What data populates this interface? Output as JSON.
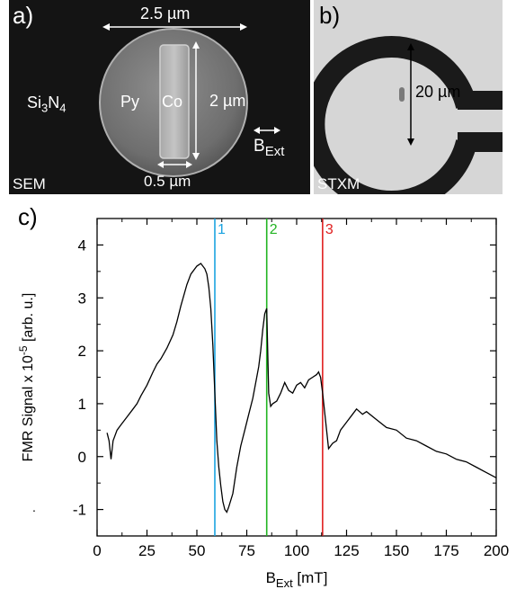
{
  "panel_a": {
    "label": "a)",
    "width_label": "2.5 µm",
    "height_label": "2 µm",
    "gap_label": "0.5 µm",
    "substrate_label": "Si3N4",
    "substrate_parts": [
      "Si",
      "3",
      "N",
      "4"
    ],
    "disk_label": "Py",
    "bar_label": "Co",
    "field_label": "BExt",
    "field_parts": [
      "B",
      "Ext"
    ],
    "corner_label": "SEM"
  },
  "panel_b": {
    "label": "b)",
    "diameter_label": "20 µm",
    "corner_label": "STXM"
  },
  "panel_c": {
    "label": "c)",
    "tick_dot": "."
  },
  "chart_data": {
    "type": "line",
    "xlabel": "BExt [mT]",
    "xlabel_parts": [
      "B",
      "Ext",
      " [mT]"
    ],
    "ylabel": "FMR Signal x 10-5 [arb. u.]",
    "ylabel_parts": [
      "FMR Signal x 10",
      "-5",
      " [arb. u.]"
    ],
    "xlim": [
      0,
      200
    ],
    "ylim": [
      -1.5,
      4.5
    ],
    "xticks": [
      0,
      25,
      50,
      75,
      100,
      125,
      150,
      175,
      200
    ],
    "yticks": [
      -1,
      0,
      1,
      2,
      3,
      4
    ],
    "grid": false,
    "vlines": [
      {
        "label": "1",
        "x": 59,
        "color": "#1ba3e0"
      },
      {
        "label": "2",
        "x": 85,
        "color": "#22b422"
      },
      {
        "label": "3",
        "x": 113,
        "color": "#e02020"
      }
    ],
    "series": [
      {
        "color": "#000000",
        "x": [
          5,
          6,
          7,
          8,
          10,
          12,
          15,
          18,
          20,
          22,
          25,
          28,
          30,
          32,
          35,
          38,
          40,
          42,
          45,
          47,
          50,
          52,
          54,
          55,
          56,
          57,
          58,
          59,
          60,
          61,
          62,
          63,
          64,
          65,
          66,
          68,
          70,
          72,
          74,
          76,
          78,
          80,
          81,
          82,
          83,
          84,
          85,
          86,
          87,
          88,
          90,
          92,
          94,
          96,
          98,
          100,
          102,
          104,
          106,
          108,
          110,
          111,
          112,
          113,
          114,
          115,
          116,
          118,
          120,
          122,
          125,
          128,
          130,
          133,
          135,
          140,
          145,
          150,
          155,
          160,
          165,
          170,
          175,
          180,
          185,
          190,
          195,
          200
        ],
        "y": [
          0.45,
          0.3,
          -0.05,
          0.3,
          0.5,
          0.6,
          0.75,
          0.9,
          1.0,
          1.15,
          1.35,
          1.6,
          1.75,
          1.85,
          2.05,
          2.3,
          2.55,
          2.85,
          3.25,
          3.45,
          3.6,
          3.65,
          3.55,
          3.45,
          3.2,
          2.8,
          2.1,
          1.2,
          0.3,
          -0.2,
          -0.55,
          -0.85,
          -1.0,
          -1.05,
          -0.95,
          -0.7,
          -0.2,
          0.2,
          0.5,
          0.8,
          1.1,
          1.5,
          1.7,
          2.0,
          2.4,
          2.7,
          2.8,
          1.2,
          0.95,
          1.0,
          1.05,
          1.2,
          1.4,
          1.25,
          1.2,
          1.35,
          1.4,
          1.3,
          1.45,
          1.5,
          1.55,
          1.6,
          1.5,
          1.2,
          0.85,
          0.5,
          0.15,
          0.25,
          0.3,
          0.5,
          0.65,
          0.8,
          0.9,
          0.8,
          0.85,
          0.7,
          0.55,
          0.5,
          0.35,
          0.3,
          0.2,
          0.1,
          0.05,
          -0.05,
          -0.1,
          -0.2,
          -0.3,
          -0.4
        ]
      }
    ]
  }
}
